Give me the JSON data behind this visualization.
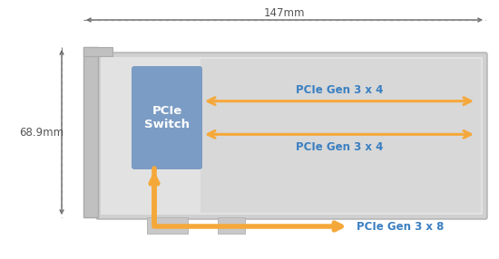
{
  "bg_color": "#ffffff",
  "card_outer_color": "#d0d0d0",
  "card_inner_color": "#e2e2e2",
  "slot_upper_color": "#d8d8d8",
  "slot_lower_color": "#d8d8d8",
  "bracket_color": "#c0c0c0",
  "switch_color": "#7b9cc4",
  "switch_text": "PCIe\nSwitch",
  "switch_text_color": "#ffffff",
  "arrow_color": "#f5a83a",
  "label_color": "#3a7fc1",
  "dim_color": "#555555",
  "label_gen3x4_1": "PCIe Gen 3 x 4",
  "label_gen3x4_2": "PCIe Gen 3 x 4",
  "label_gen3x8": "PCIe Gen 3 x 8",
  "dim_width": "147mm",
  "dim_height": "68.9mm",
  "fig_width": 5.5,
  "fig_height": 2.86
}
